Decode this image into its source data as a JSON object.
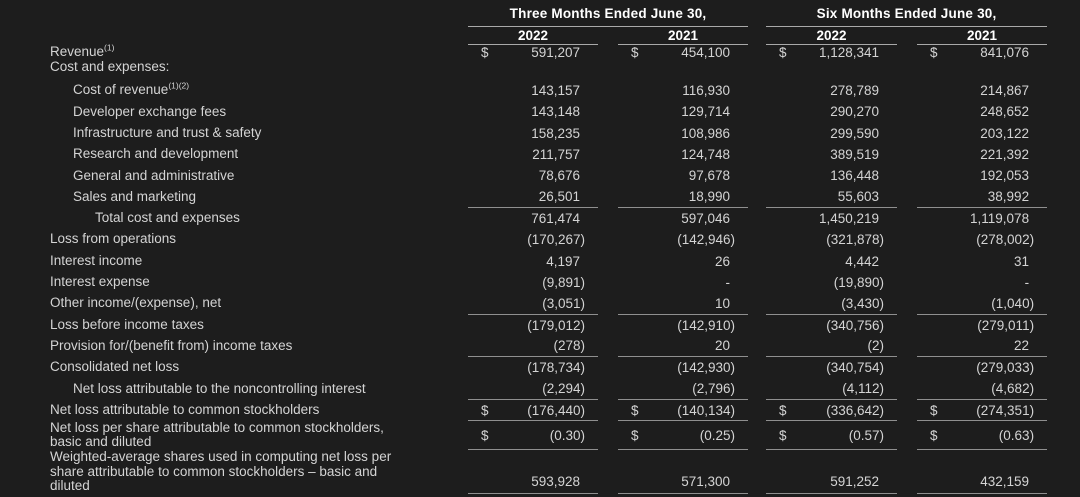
{
  "colors": {
    "background": "#1d1d1d",
    "text": "#d4d4d4",
    "header_text": "#ffffff",
    "rule": "#8f8f8f",
    "header_rule": "#a9a9a9"
  },
  "table": {
    "currency_symbol": "$",
    "period_headers": [
      "Three Months Ended June 30,",
      "Six Months Ended June 30,"
    ],
    "year_headers": [
      "2022",
      "2021",
      "2022",
      "2021"
    ],
    "rows": [
      {
        "label": "Revenue",
        "sup": "(1)",
        "indent": 0,
        "dollar": true,
        "tight": true,
        "values": [
          "591,207",
          "454,100",
          "1,128,341",
          "841,076"
        ]
      },
      {
        "label": "Cost and expenses:",
        "indent": 0,
        "subhead": true,
        "values": null
      },
      {
        "label": "Cost of revenue",
        "sup": "(1)(2)",
        "indent": 1,
        "values": [
          "143,157",
          "116,930",
          "278,789",
          "214,867"
        ]
      },
      {
        "label": "Developer exchange fees",
        "indent": 1,
        "values": [
          "143,148",
          "129,714",
          "290,270",
          "248,652"
        ]
      },
      {
        "label": "Infrastructure and trust & safety",
        "indent": 1,
        "values": [
          "158,235",
          "108,986",
          "299,590",
          "203,122"
        ]
      },
      {
        "label": "Research and development",
        "indent": 1,
        "values": [
          "211,757",
          "124,748",
          "389,519",
          "221,392"
        ]
      },
      {
        "label": "General and administrative",
        "indent": 1,
        "values": [
          "78,676",
          "97,678",
          "136,448",
          "192,053"
        ]
      },
      {
        "label": "Sales and marketing",
        "indent": 1,
        "border": true,
        "values": [
          "26,501",
          "18,990",
          "55,603",
          "38,992"
        ]
      },
      {
        "label": "Total cost and expenses",
        "indent": 2,
        "values": [
          "761,474",
          "597,046",
          "1,450,219",
          "1,119,078"
        ]
      },
      {
        "label": "Loss from operations",
        "indent": 0,
        "values": [
          "(170,267)",
          "(142,946)",
          "(321,878)",
          "(278,002)"
        ]
      },
      {
        "label": "Interest income",
        "indent": 0,
        "values": [
          "4,197",
          "26",
          "4,442",
          "31"
        ]
      },
      {
        "label": "Interest expense",
        "indent": 0,
        "values": [
          "(9,891)",
          "-",
          "(19,890)",
          "-"
        ]
      },
      {
        "label": "Other income/(expense), net",
        "indent": 0,
        "border": true,
        "values": [
          "(3,051)",
          "10",
          "(3,430)",
          "(1,040)"
        ]
      },
      {
        "label": "Loss before income taxes",
        "indent": 0,
        "values": [
          "(179,012)",
          "(142,910)",
          "(340,756)",
          "(279,011)"
        ]
      },
      {
        "label": "Provision for/(benefit from) income taxes",
        "indent": 0,
        "border": true,
        "values": [
          "(278)",
          "20",
          "(2)",
          "22"
        ]
      },
      {
        "label": "Consolidated net loss",
        "indent": 0,
        "values": [
          "(178,734)",
          "(142,930)",
          "(340,754)",
          "(279,033)"
        ]
      },
      {
        "label": "Net loss attributable to the noncontrolling interest",
        "indent": 1,
        "border": true,
        "values": [
          "(2,294)",
          "(2,796)",
          "(4,112)",
          "(4,682)"
        ]
      },
      {
        "label": "Net loss attributable to common stockholders",
        "indent": 0,
        "dollar": true,
        "border": true,
        "values": [
          "(176,440)",
          "(140,134)",
          "(336,642)",
          "(274,351)"
        ]
      },
      {
        "label": "Net loss per share attributable to common stockholders,\nbasic and diluted",
        "indent": 0,
        "dollar": true,
        "border": true,
        "multiline": 2,
        "values": [
          "(0.30)",
          "(0.25)",
          "(0.57)",
          "(0.63)"
        ]
      },
      {
        "label": "Weighted-average shares used in computing net loss per\nshare attributable to common stockholders – basic and\ndiluted",
        "indent": 0,
        "border": true,
        "multiline": 3,
        "valign": "bottom",
        "values": [
          "593,928",
          "571,300",
          "591,252",
          "432,159"
        ]
      }
    ]
  }
}
